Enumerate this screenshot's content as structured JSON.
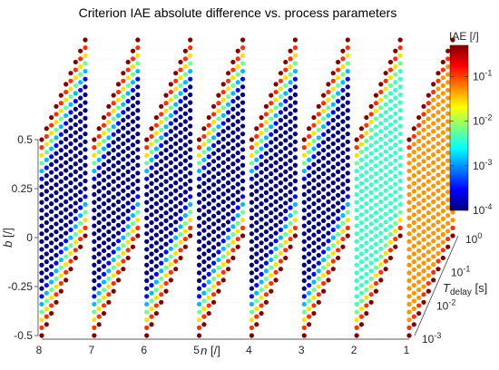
{
  "chart_data": {
    "type": "scatter",
    "title": "Criterion IAE absolute difference vs. process parameters",
    "axes": {
      "n": {
        "label_italic": "n",
        "label_unit": " [/]",
        "ticks": [
          "8",
          "7",
          "6",
          "5",
          "4",
          "3",
          "2",
          "1"
        ],
        "values": [
          8,
          7,
          6,
          5,
          4,
          3,
          2,
          1
        ]
      },
      "b": {
        "label_italic": "b",
        "label_unit": " [/]",
        "ticks": [
          "0.5",
          "0.25",
          "0",
          "-0.25",
          "-0.5"
        ],
        "values": [
          0.5,
          0.25,
          0,
          -0.25,
          -0.5
        ],
        "range": [
          -0.5,
          0.5
        ]
      },
      "tdelay": {
        "label_italic": "T",
        "label_sub": "delay",
        "label_unit": " [s]",
        "tick_base": "10",
        "tick_exps": [
          "0",
          "-1",
          "-2",
          "-3"
        ],
        "values": [
          1,
          0.1,
          0.01,
          0.001
        ],
        "scale": "log"
      }
    },
    "colorbar": {
      "label": "IAE [/]",
      "tick_base": "10",
      "tick_exps": [
        "-1",
        "-2",
        "-3",
        "-4"
      ],
      "scale": "log",
      "range": [
        0.0001,
        0.5
      ],
      "colormap": "jet"
    },
    "series": [
      {
        "n": 8,
        "iae_min_log10": -4.0
      },
      {
        "n": 7,
        "iae_min_log10": -4.0
      },
      {
        "n": 6,
        "iae_min_log10": -4.0
      },
      {
        "n": 5,
        "iae_min_log10": -4.0
      },
      {
        "n": 4,
        "iae_min_log10": -4.0
      },
      {
        "n": 3,
        "iae_min_log10": -4.0
      },
      {
        "n": 2,
        "iae_min_log10": -2.4
      },
      {
        "n": 1,
        "iae_min_log10": -1.3
      }
    ],
    "grid": true
  }
}
